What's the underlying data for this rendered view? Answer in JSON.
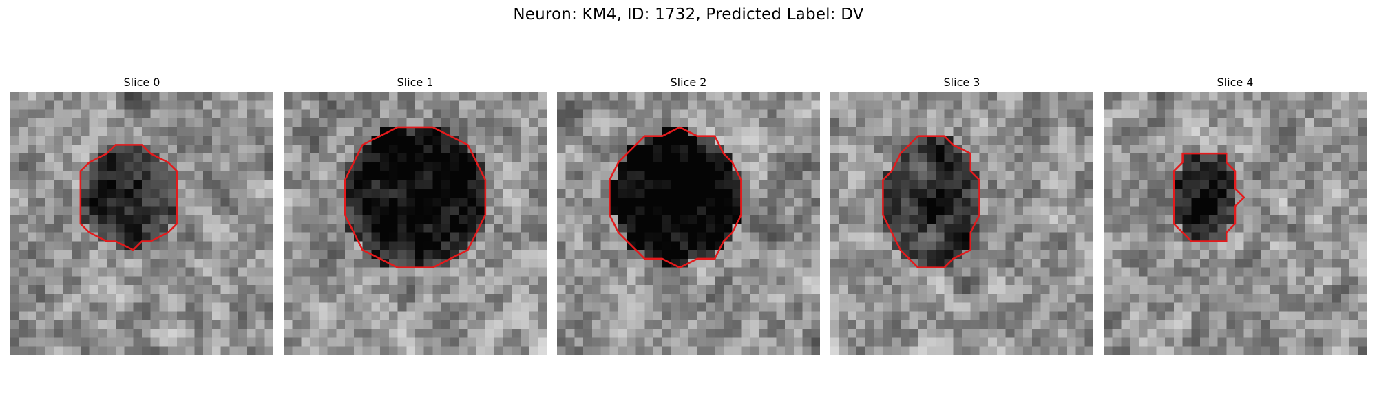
{
  "figure": {
    "title": "Neuron: KM4, ID: 1732, Predicted Label: DV"
  },
  "panels": [
    {
      "title": "Slice 0",
      "seed": 101,
      "darkness": 0.45,
      "cx": 13.5,
      "cy": 11.8,
      "rx": 5.8,
      "ry": 5.8
    },
    {
      "title": "Slice 1",
      "seed": 202,
      "darkness": 0.62,
      "cx": 15.0,
      "cy": 12.0,
      "rx": 8.3,
      "ry": 8.3
    },
    {
      "title": "Slice 2",
      "seed": 303,
      "darkness": 0.72,
      "cx": 13.7,
      "cy": 12.0,
      "rx": 7.6,
      "ry": 7.6
    },
    {
      "title": "Slice 3",
      "seed": 404,
      "darkness": 0.45,
      "cx": 11.6,
      "cy": 12.4,
      "rx": 5.6,
      "ry": 7.6
    },
    {
      "title": "Slice 4",
      "seed": 505,
      "darkness": 0.5,
      "cx": 11.5,
      "cy": 12.0,
      "rx": 4.0,
      "ry": 5.2
    }
  ],
  "colors": {
    "contour": "#e41a1c",
    "background": "#ffffff"
  },
  "image_grid": 30
}
